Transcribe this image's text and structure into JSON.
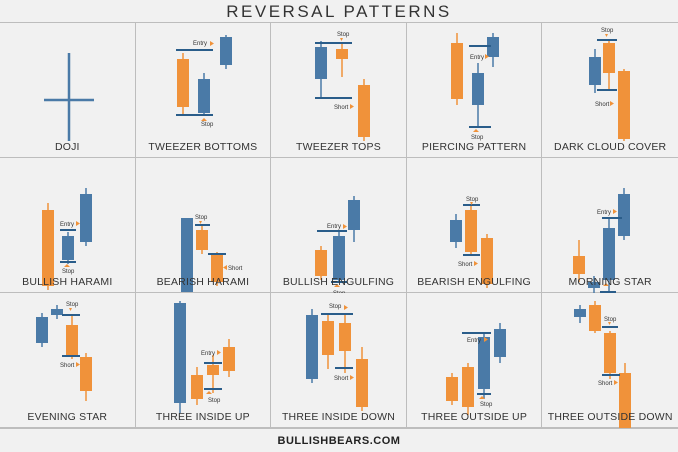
{
  "title": "REVERSAL PATTERNS",
  "footer": "BULLISHBEARS.COM",
  "colors": {
    "bull": "#4a7aa7",
    "bear": "#f0923a",
    "line": "#2a5d8a"
  },
  "annotations": {
    "entry": "Entry",
    "stop": "Stop",
    "short": "Short"
  },
  "patterns": [
    {
      "label": "DOJI"
    },
    {
      "label": "TWEEZER BOTTOMS"
    },
    {
      "label": "TWEEZER TOPS"
    },
    {
      "label": "PIERCING PATTERN"
    },
    {
      "label": "DARK CLOUD COVER"
    },
    {
      "label": "BULLISH HARAMI"
    },
    {
      "label": "BEARISH HARAMI"
    },
    {
      "label": "BULLISH ENGULFING"
    },
    {
      "label": "BEARISH ENGULFING"
    },
    {
      "label": "MORNING STAR"
    },
    {
      "label": "EVENING STAR"
    },
    {
      "label": "THREE INSIDE UP"
    },
    {
      "label": "THREE INSIDE DOWN"
    },
    {
      "label": "THREE OUTSIDE UP"
    },
    {
      "label": "THREE OUTSIDE DOWN"
    }
  ]
}
